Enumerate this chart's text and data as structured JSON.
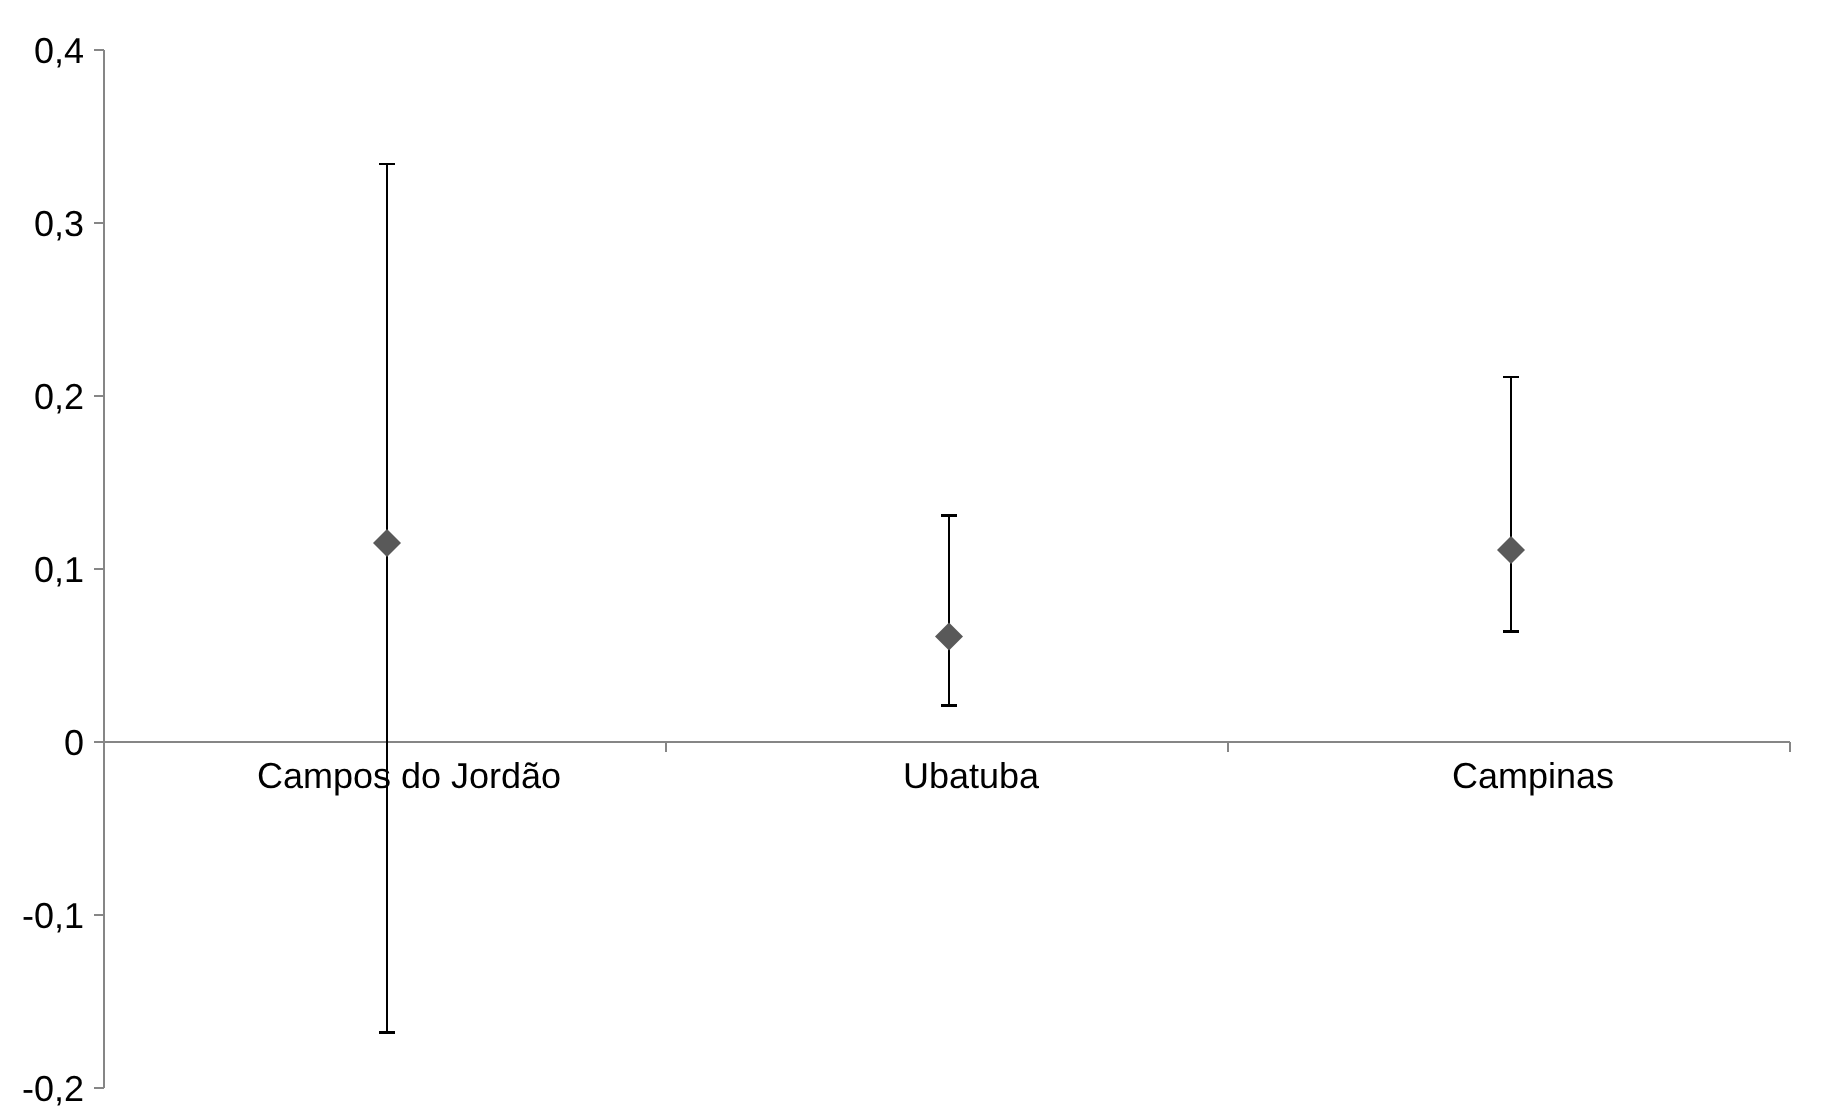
{
  "chart_data": {
    "type": "scatter",
    "categories": [
      "Campos do Jordão",
      "Ubatuba",
      "Campinas"
    ],
    "series": [
      {
        "color": "#595959",
        "values": [
          0.115,
          0.061,
          0.111
        ],
        "errors": [
          [
            -0.168,
            0.334
          ],
          [
            0.021,
            0.131
          ],
          [
            0.064,
            0.211
          ]
        ]
      }
    ],
    "ylim": [
      -0.2,
      0.4
    ],
    "yticks": [
      {
        "value": -0.2,
        "label": "-0,2"
      },
      {
        "value": -0.1,
        "label": "-0,1"
      },
      {
        "value": 0,
        "label": "0"
      },
      {
        "value": 0.1,
        "label": "0,1"
      },
      {
        "value": 0.2,
        "label": "0,2"
      },
      {
        "value": 0.3,
        "label": "0,3"
      },
      {
        "value": 0.4,
        "label": "0,4"
      }
    ],
    "marker": "diamond"
  }
}
